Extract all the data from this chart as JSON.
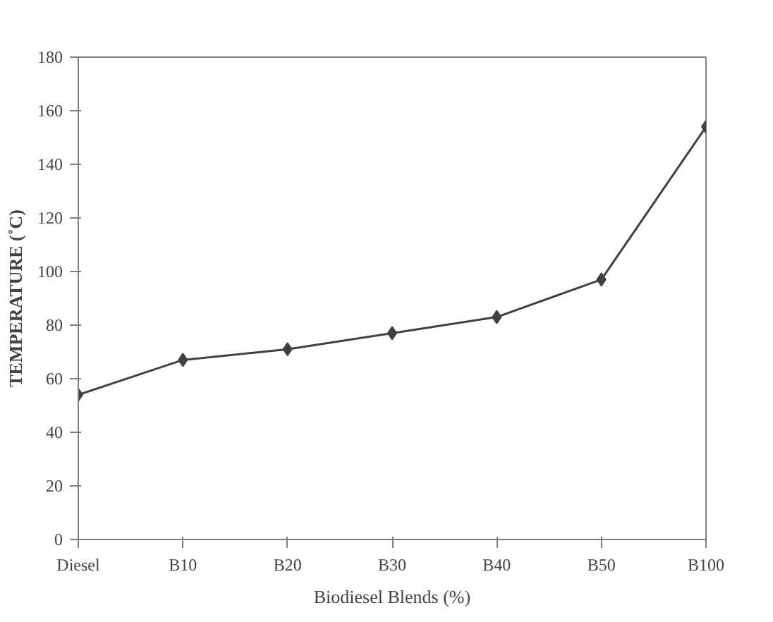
{
  "chart_data": {
    "type": "line",
    "xlabel": "Biodiesel Blends (%)",
    "ylabel": "TEMPERATURE (˚C)",
    "categories": [
      "Diesel",
      "B10",
      "B20",
      "B30",
      "B40",
      "B50",
      "B100"
    ],
    "series": [
      {
        "color": "#404040",
        "values": [
          54,
          67,
          71,
          77,
          83,
          97,
          154
        ]
      }
    ],
    "ylim": [
      0,
      180
    ],
    "yticks": [
      0,
      20,
      40,
      60,
      80,
      100,
      120,
      140,
      160,
      180
    ],
    "grid": false,
    "marker": "diamond",
    "line_style": "solid"
  }
}
